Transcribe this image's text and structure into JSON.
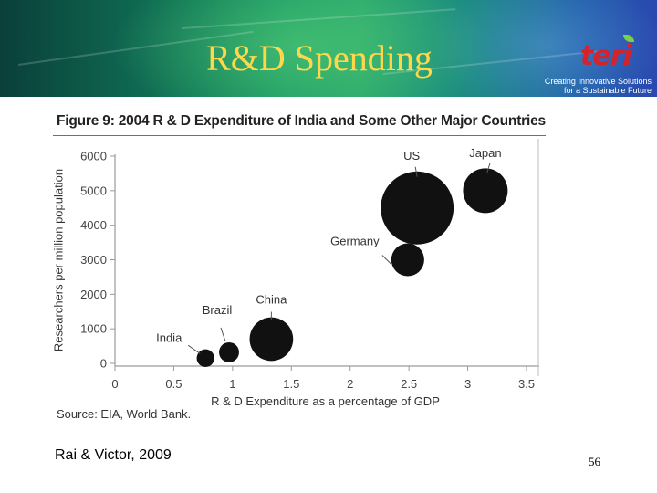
{
  "slide": {
    "title": "R&D Spending",
    "citation": "Rai & Victor, 2009",
    "page_number": "56"
  },
  "logo": {
    "text": "teri",
    "tagline_line1": "Creating Innovative Solutions",
    "tagline_line2": "for a Sustainable Future"
  },
  "colors": {
    "title": "#ffd84a",
    "logo": "#d4232a",
    "bubble": "#111111"
  },
  "figure": {
    "title": "Figure 9: 2004 R & D Expenditure of India and Some Other Major Countries",
    "source": "Source: EIA, World Bank."
  },
  "chart_data": {
    "type": "scatter",
    "title": "Figure 9: 2004 R & D Expenditure of India and Some Other Major Countries",
    "xlabel": "R & D Expenditure as a percentage of GDP",
    "ylabel": "Researchers per million population",
    "xlim": [
      0,
      3.5
    ],
    "ylim": [
      0,
      6000
    ],
    "x_ticks": [
      "0",
      "0.5",
      "1",
      "1.5",
      "2",
      "2.5",
      "3",
      "3.5"
    ],
    "y_ticks": [
      "6000",
      "5000",
      "4000",
      "3000",
      "2000",
      "1000",
      "0"
    ],
    "grid": false,
    "series": [
      {
        "name": "India",
        "x": 0.77,
        "y": 150,
        "size": 0.15
      },
      {
        "name": "Brazil",
        "x": 0.97,
        "y": 320,
        "size": 0.17
      },
      {
        "name": "China",
        "x": 1.33,
        "y": 700,
        "size": 0.37
      },
      {
        "name": "Germany",
        "x": 2.49,
        "y": 3000,
        "size": 0.28
      },
      {
        "name": "US",
        "x": 2.57,
        "y": 4500,
        "size": 0.62
      },
      {
        "name": "Japan",
        "x": 3.15,
        "y": 5000,
        "size": 0.38
      }
    ]
  }
}
